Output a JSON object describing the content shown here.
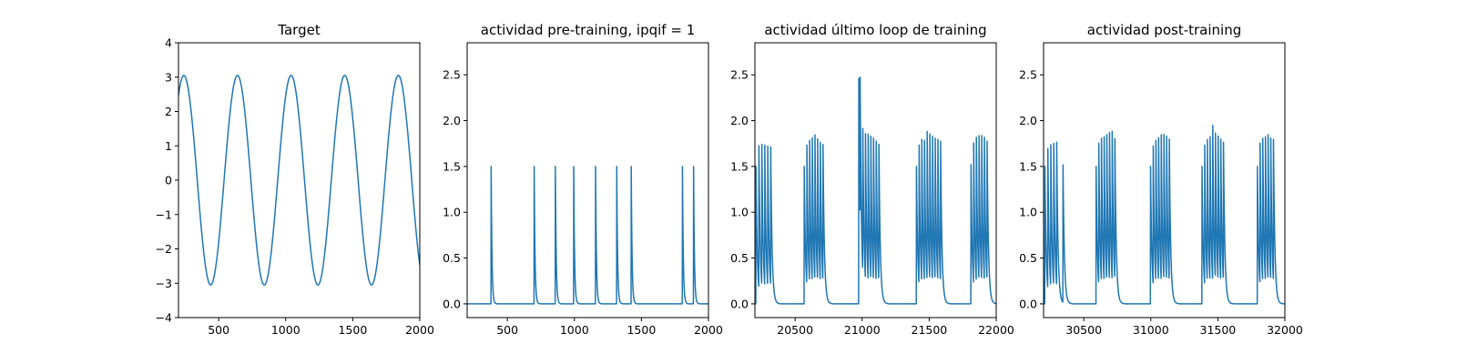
{
  "figure": {
    "line_color": "#1f77b4"
  },
  "chart_data": [
    {
      "type": "line",
      "title": "Target",
      "xlabel": "",
      "ylabel": "",
      "xlim": [
        200,
        2000
      ],
      "ylim": [
        -4,
        4
      ],
      "xticks": [
        500,
        1000,
        1500,
        2000
      ],
      "yticks": [
        -4,
        -3,
        -2,
        -1,
        0,
        1,
        2,
        3,
        4
      ],
      "grid": false,
      "legend": "none",
      "signal": {
        "kind": "sine",
        "amplitude": 3.05,
        "period": 400,
        "peak_at": 240,
        "x_start": 200,
        "x_end": 2000
      }
    },
    {
      "type": "line",
      "title": "actividad pre-training, ipqif = 1",
      "xlabel": "",
      "ylabel": "",
      "xlim": [
        200,
        2000
      ],
      "ylim": [
        -0.15,
        2.85
      ],
      "xticks": [
        500,
        1000,
        1500,
        2000
      ],
      "yticks": [
        0.0,
        0.5,
        1.0,
        1.5,
        2.0,
        2.5
      ],
      "grid": false,
      "legend": "none",
      "signal": {
        "kind": "spikes",
        "x_start": 200,
        "x_end": 2000,
        "decay": 6,
        "spike_x": [
          379,
          700,
          858,
          995,
          1158,
          1316,
          1424,
          1806,
          1889
        ],
        "spike_y": [
          1.5,
          1.5,
          1.5,
          1.5,
          1.5,
          1.5,
          1.5,
          1.5,
          1.5
        ]
      }
    },
    {
      "type": "line",
      "title": "actividad último loop de training",
      "xlabel": "",
      "ylabel": "",
      "xlim": [
        20200,
        22000
      ],
      "ylim": [
        -0.15,
        2.85
      ],
      "xticks": [
        20500,
        21000,
        21500,
        22000
      ],
      "yticks": [
        0.0,
        0.5,
        1.0,
        1.5,
        2.0,
        2.5
      ],
      "grid": false,
      "legend": "none",
      "signal": {
        "kind": "spikes",
        "x_start": 20200,
        "x_end": 22000,
        "decay": 10,
        "spike_x": [
          20208,
          20230,
          20252,
          20274,
          20296,
          20318,
          20568,
          20588,
          20608,
          20628,
          20648,
          20668,
          20688,
          20708,
          20975,
          20985,
          21005,
          21025,
          21045,
          21065,
          21085,
          21105,
          21125,
          21405,
          21425,
          21445,
          21465,
          21485,
          21505,
          21525,
          21545,
          21565,
          21585,
          21812,
          21832,
          21852,
          21872,
          21892,
          21912,
          21932
        ],
        "spike_y": [
          1.5,
          1.56,
          1.55,
          1.54,
          1.53,
          1.52,
          1.5,
          1.53,
          1.55,
          1.57,
          1.6,
          1.55,
          1.52,
          1.5,
          2.46,
          1.57,
          1.58,
          1.6,
          1.6,
          1.58,
          1.56,
          1.53,
          1.5,
          1.5,
          1.53,
          1.56,
          1.54,
          1.64,
          1.6,
          1.58,
          1.56,
          1.55,
          1.53,
          1.52,
          1.55,
          1.58,
          1.59,
          1.59,
          1.57,
          1.53
        ]
      }
    },
    {
      "type": "line",
      "title": "actividad post-training",
      "xlabel": "",
      "ylabel": "",
      "xlim": [
        30200,
        32000
      ],
      "ylim": [
        -0.15,
        2.85
      ],
      "xticks": [
        30500,
        31000,
        31500,
        32000
      ],
      "yticks": [
        0.0,
        0.5,
        1.0,
        1.5,
        2.0,
        2.5
      ],
      "grid": false,
      "legend": "none",
      "signal": {
        "kind": "spikes",
        "x_start": 30200,
        "x_end": 32000,
        "decay": 10,
        "spike_x": [
          30210,
          30232,
          30254,
          30276,
          30298,
          30345,
          30592,
          30612,
          30632,
          30652,
          30672,
          30692,
          30712,
          30732,
          30998,
          31018,
          31038,
          31058,
          31078,
          31098,
          31118,
          31138,
          31382,
          31402,
          31422,
          31442,
          31462,
          31482,
          31502,
          31522,
          31542,
          31795,
          31815,
          31835,
          31855,
          31875,
          31895,
          31915
        ],
        "spike_y": [
          1.5,
          1.53,
          1.55,
          1.56,
          1.57,
          1.5,
          1.5,
          1.55,
          1.57,
          1.58,
          1.6,
          1.62,
          1.63,
          1.55,
          1.5,
          1.52,
          1.55,
          1.57,
          1.6,
          1.6,
          1.58,
          1.55,
          1.5,
          1.53,
          1.56,
          1.58,
          1.7,
          1.6,
          1.58,
          1.55,
          1.52,
          1.5,
          1.55,
          1.57,
          1.58,
          1.6,
          1.56,
          1.55
        ]
      }
    }
  ]
}
